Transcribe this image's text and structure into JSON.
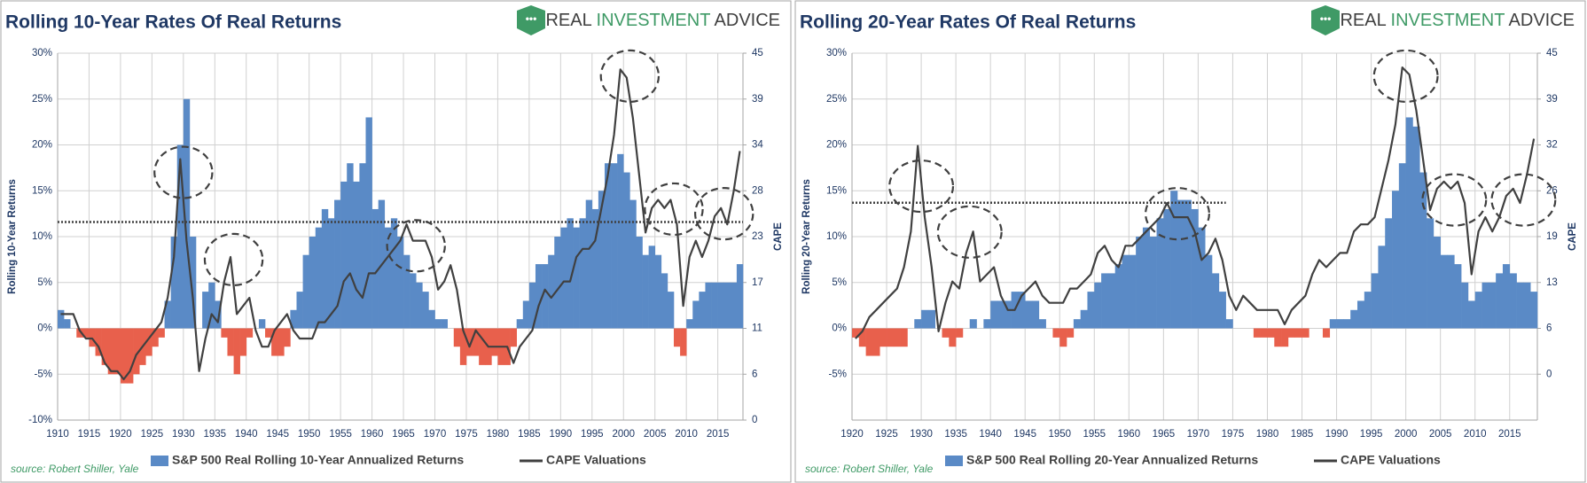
{
  "chart_data": [
    {
      "type": "combo",
      "title": "Rolling 10-Year Rates Of Real Returns",
      "brand": [
        "REAL",
        "INVESTMENT",
        "ADVICE"
      ],
      "ylabel": "Rolling 10-Year Returns",
      "y2label": "CAPE",
      "source": "source: Robert Shiller, Yale",
      "x": [
        1910,
        1911,
        1912,
        1913,
        1914,
        1915,
        1916,
        1917,
        1918,
        1919,
        1920,
        1921,
        1922,
        1923,
        1924,
        1925,
        1926,
        1927,
        1928,
        1929,
        1930,
        1931,
        1932,
        1933,
        1934,
        1935,
        1936,
        1937,
        1938,
        1939,
        1940,
        1941,
        1942,
        1943,
        1944,
        1945,
        1946,
        1947,
        1948,
        1949,
        1950,
        1951,
        1952,
        1953,
        1954,
        1955,
        1956,
        1957,
        1958,
        1959,
        1960,
        1961,
        1962,
        1963,
        1964,
        1965,
        1966,
        1967,
        1968,
        1969,
        1970,
        1971,
        1972,
        1973,
        1974,
        1975,
        1976,
        1977,
        1978,
        1979,
        1980,
        1981,
        1982,
        1983,
        1984,
        1985,
        1986,
        1987,
        1988,
        1989,
        1990,
        1991,
        1992,
        1993,
        1994,
        1995,
        1996,
        1997,
        1998,
        1999,
        2000,
        2001,
        2002,
        2003,
        2004,
        2005,
        2006,
        2007,
        2008,
        2009,
        2010,
        2011,
        2012,
        2013,
        2014,
        2015,
        2016,
        2017,
        2018
      ],
      "series": [
        {
          "name": "S&P 500 Real Rolling 10-Year Annualized Returns",
          "color": "#5a8ac6",
          "negative_color": "#e8604c",
          "values": [
            2,
            1,
            0,
            -1,
            -1,
            -2,
            -3,
            -4,
            -5,
            -5,
            -6,
            -6,
            -5,
            -4,
            -3,
            -2,
            -1,
            3,
            10,
            20,
            25,
            10,
            0,
            4,
            5,
            3,
            -1,
            -3,
            -5,
            -3,
            -1,
            0,
            1,
            -1,
            -3,
            -3,
            -2,
            2,
            4,
            8,
            10,
            11,
            13,
            12,
            14,
            16,
            18,
            16,
            18,
            23,
            13,
            14,
            11,
            12,
            10,
            8,
            6,
            5,
            4,
            2,
            1,
            1,
            0,
            -2,
            -4,
            -3,
            -3,
            -4,
            -4,
            -3,
            -4,
            -4,
            -2,
            1,
            3,
            5,
            7,
            7,
            8,
            10,
            11,
            12,
            11,
            12,
            14,
            13,
            15,
            18,
            18,
            19,
            17,
            14,
            10,
            8,
            9,
            8,
            6,
            4,
            -2,
            -3,
            1,
            3,
            4,
            5,
            5,
            5,
            5,
            5,
            7
          ]
        },
        {
          "name": "CAPE Valuations",
          "color": "#404040",
          "axis": "y2",
          "values": [
            13,
            13,
            13,
            11,
            10,
            10,
            9,
            7,
            6,
            6,
            5,
            6,
            8,
            9,
            10,
            11,
            12,
            15,
            20,
            32,
            22,
            15,
            6,
            10,
            13,
            12,
            17,
            20,
            13,
            14,
            15,
            11,
            9,
            9,
            11,
            12,
            13,
            11,
            10,
            10,
            10,
            12,
            12,
            13,
            14,
            17,
            18,
            16,
            15,
            18,
            18,
            19,
            20,
            21,
            22,
            24,
            22,
            22,
            22,
            20,
            16,
            17,
            19,
            16,
            11,
            9,
            11,
            10,
            9,
            9,
            9,
            9,
            7,
            9,
            10,
            11,
            14,
            16,
            15,
            16,
            17,
            17,
            20,
            21,
            21,
            22,
            26,
            30,
            35,
            43,
            42,
            37,
            30,
            23,
            26,
            27,
            26,
            27,
            24,
            14,
            20,
            22,
            20,
            22,
            25,
            26,
            24,
            28,
            33
          ]
        }
      ],
      "xlim": [
        1910,
        2019
      ],
      "xticks": [
        1910,
        1915,
        1920,
        1925,
        1930,
        1935,
        1940,
        1945,
        1950,
        1955,
        1960,
        1965,
        1970,
        1975,
        1980,
        1985,
        1990,
        1995,
        2000,
        2005,
        2010,
        2015
      ],
      "ylim": [
        -10,
        30
      ],
      "yticks": [
        {
          "value": -10,
          "label": "-10%"
        },
        {
          "value": -5,
          "label": "-5%"
        },
        {
          "value": 0,
          "label": "0%"
        },
        {
          "value": 5,
          "label": "5%"
        },
        {
          "value": 10,
          "label": "10%"
        },
        {
          "value": 15,
          "label": "15%"
        },
        {
          "value": 20,
          "label": "20%"
        },
        {
          "value": 25,
          "label": "25%"
        },
        {
          "value": 30,
          "label": "30%"
        }
      ],
      "y2lim": [
        0,
        45
      ],
      "y2ticks": [
        0,
        {
          "value": 5.625,
          "label": "6"
        },
        {
          "value": 11.25,
          "label": "11"
        },
        {
          "value": 16.875,
          "label": "17"
        },
        {
          "value": 22.5,
          "label": "23"
        },
        {
          "value": 28.125,
          "label": "28"
        },
        {
          "value": 33.75,
          "label": "34"
        },
        {
          "value": 39.375,
          "label": "39"
        },
        45
      ],
      "grid": true,
      "reference_line": {
        "y": 11.6,
        "x": [
          1910,
          2019
        ]
      },
      "highlights": [
        {
          "x": 1930,
          "y": 17
        },
        {
          "x": 1938,
          "y": 7.5
        },
        {
          "x": 1967,
          "y": 9
        },
        {
          "x": 2001,
          "y": 27.5
        },
        {
          "x": 2008,
          "y": 13
        },
        {
          "x": 2016,
          "y": 12.5
        }
      ]
    },
    {
      "type": "combo",
      "title": "Rolling 20-Year Rates Of Real Returns",
      "brand": [
        "REAL",
        "INVESTMENT",
        "ADVICE"
      ],
      "ylabel": "Rolling 20-Year Returns",
      "y2label": "CAPE",
      "source": "source: Robert Shiller, Yale",
      "x": [
        1920,
        1921,
        1922,
        1923,
        1924,
        1925,
        1926,
        1927,
        1928,
        1929,
        1930,
        1931,
        1932,
        1933,
        1934,
        1935,
        1936,
        1937,
        1938,
        1939,
        1940,
        1941,
        1942,
        1943,
        1944,
        1945,
        1946,
        1947,
        1948,
        1949,
        1950,
        1951,
        1952,
        1953,
        1954,
        1955,
        1956,
        1957,
        1958,
        1959,
        1960,
        1961,
        1962,
        1963,
        1964,
        1965,
        1966,
        1967,
        1968,
        1969,
        1970,
        1971,
        1972,
        1973,
        1974,
        1975,
        1976,
        1977,
        1978,
        1979,
        1980,
        1981,
        1982,
        1983,
        1984,
        1985,
        1986,
        1987,
        1988,
        1989,
        1990,
        1991,
        1992,
        1993,
        1994,
        1995,
        1996,
        1997,
        1998,
        1999,
        2000,
        2001,
        2002,
        2003,
        2004,
        2005,
        2006,
        2007,
        2008,
        2009,
        2010,
        2011,
        2012,
        2013,
        2014,
        2015,
        2016,
        2017,
        2018
      ],
      "series": [
        {
          "name": "S&P 500 Real Rolling 20-Year Annualized Returns",
          "color": "#5a8ac6",
          "negative_color": "#e8604c",
          "values": [
            -1,
            -2,
            -3,
            -3,
            -2,
            -2,
            -2,
            -2,
            0,
            1,
            2,
            2,
            0,
            -1,
            -2,
            -1,
            0,
            1,
            0,
            1,
            3,
            3,
            3,
            4,
            4,
            3,
            3,
            1,
            0,
            -1,
            -2,
            -1,
            1,
            2,
            4,
            5,
            6,
            6,
            7,
            8,
            8,
            10,
            11,
            10,
            12,
            13,
            15,
            14,
            14,
            13,
            11,
            8,
            6,
            4,
            1,
            0,
            0,
            0,
            -1,
            -1,
            -1,
            -2,
            -2,
            -1,
            -1,
            -1,
            0,
            0,
            -1,
            1,
            1,
            1,
            2,
            3,
            4,
            6,
            9,
            12,
            15,
            18,
            23,
            22,
            17,
            12,
            10,
            8,
            8,
            7,
            5,
            3,
            4,
            5,
            5,
            6,
            7,
            6,
            5,
            5,
            4
          ]
        },
        {
          "name": "CAPE Valuations",
          "color": "#404040",
          "axis": "y2",
          "values": [
            5,
            6,
            8,
            9,
            10,
            11,
            12,
            15,
            20,
            32,
            22,
            15,
            6,
            10,
            13,
            12,
            17,
            20,
            13,
            14,
            15,
            11,
            9,
            9,
            11,
            12,
            13,
            11,
            10,
            10,
            10,
            12,
            12,
            13,
            14,
            17,
            18,
            16,
            15,
            18,
            18,
            19,
            20,
            21,
            22,
            24,
            22,
            22,
            22,
            20,
            16,
            17,
            19,
            16,
            11,
            9,
            11,
            10,
            9,
            9,
            9,
            9,
            7,
            9,
            10,
            11,
            14,
            16,
            15,
            16,
            17,
            17,
            20,
            21,
            21,
            22,
            26,
            30,
            35,
            43,
            42,
            37,
            30,
            23,
            26,
            27,
            26,
            27,
            24,
            14,
            20,
            22,
            20,
            22,
            25,
            26,
            24,
            28,
            33
          ]
        }
      ],
      "xlim": [
        1920,
        2019
      ],
      "xticks": [
        1920,
        1925,
        1930,
        1935,
        1940,
        1945,
        1950,
        1955,
        1960,
        1965,
        1970,
        1975,
        1980,
        1985,
        1990,
        1995,
        2000,
        2005,
        2010,
        2015
      ],
      "ylim": [
        -10,
        30
      ],
      "yticks": [
        {
          "value": -5,
          "label": "-5%"
        },
        {
          "value": 0,
          "label": "0%"
        },
        {
          "value": 5,
          "label": "5%"
        },
        {
          "value": 10,
          "label": "10%"
        },
        {
          "value": 15,
          "label": "15%"
        },
        {
          "value": 20,
          "label": "20%"
        },
        {
          "value": 25,
          "label": "25%"
        },
        {
          "value": 30,
          "label": "30%"
        }
      ],
      "y2lim": [
        -6.43,
        45
      ],
      "y2ticks": [
        0,
        {
          "value": 6.43,
          "label": "6"
        },
        {
          "value": 12.86,
          "label": "13"
        },
        {
          "value": 19.29,
          "label": "19"
        },
        {
          "value": 25.71,
          "label": "26"
        },
        {
          "value": 32.14,
          "label": "32"
        },
        {
          "value": 38.57,
          "label": "39"
        },
        45
      ],
      "grid": true,
      "reference_line": {
        "y": 13.7,
        "x": [
          1920,
          1974
        ]
      },
      "highlights": [
        {
          "x": 1930,
          "y": 15.5
        },
        {
          "x": 1937,
          "y": 10.5
        },
        {
          "x": 1967,
          "y": 12.5
        },
        {
          "x": 2000,
          "y": 27.5
        },
        {
          "x": 2007,
          "y": 14
        },
        {
          "x": 2017,
          "y": 14
        }
      ]
    }
  ]
}
